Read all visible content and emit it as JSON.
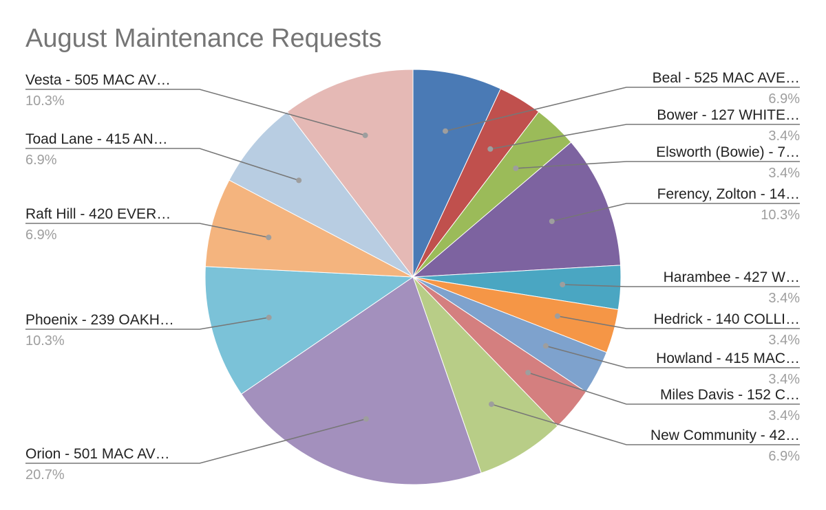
{
  "chart_data": {
    "type": "pie",
    "title": "August Maintenance Requests",
    "slices": [
      {
        "label": "Beal - 525 MAC AVE…",
        "value": 6.9,
        "pct_label": "6.9%",
        "color": "#4a7ab5"
      },
      {
        "label": "Bower - 127 WHITE…",
        "value": 3.4,
        "pct_label": "3.4%",
        "color": "#c0504d"
      },
      {
        "label": "Elsworth (Bowie) - 7…",
        "value": 3.4,
        "pct_label": "3.4%",
        "color": "#9bbb59"
      },
      {
        "label": "Ferency, Zolton - 14…",
        "value": 10.3,
        "pct_label": "10.3%",
        "color": "#7d63a0"
      },
      {
        "label": "Harambee - 427 W…",
        "value": 3.4,
        "pct_label": "3.4%",
        "color": "#4aa6c2"
      },
      {
        "label": "Hedrick - 140 COLLI…",
        "value": 3.4,
        "pct_label": "3.4%",
        "color": "#f59646"
      },
      {
        "label": "Howland - 415 MAC…",
        "value": 3.4,
        "pct_label": "3.4%",
        "color": "#7ea2cd"
      },
      {
        "label": "Miles Davis - 152 C…",
        "value": 3.4,
        "pct_label": "3.4%",
        "color": "#d47f7f"
      },
      {
        "label": "New Community - 42…",
        "value": 6.9,
        "pct_label": "6.9%",
        "color": "#b8cd87"
      },
      {
        "label": "Orion - 501 MAC AV…",
        "value": 20.7,
        "pct_label": "20.7%",
        "color": "#a390bd"
      },
      {
        "label": "Phoenix - 239 OAKH…",
        "value": 10.3,
        "pct_label": "10.3%",
        "color": "#7bc2d8"
      },
      {
        "label": "Raft Hill - 420 EVER…",
        "value": 6.9,
        "pct_label": "6.9%",
        "color": "#f4b47e"
      },
      {
        "label": "Toad Lane - 415 AN…",
        "value": 6.9,
        "pct_label": "6.9%",
        "color": "#b8cde2"
      },
      {
        "label": "Vesta - 505 MAC AV…",
        "value": 10.3,
        "pct_label": "10.3%",
        "color": "#e5b9b5"
      }
    ]
  }
}
